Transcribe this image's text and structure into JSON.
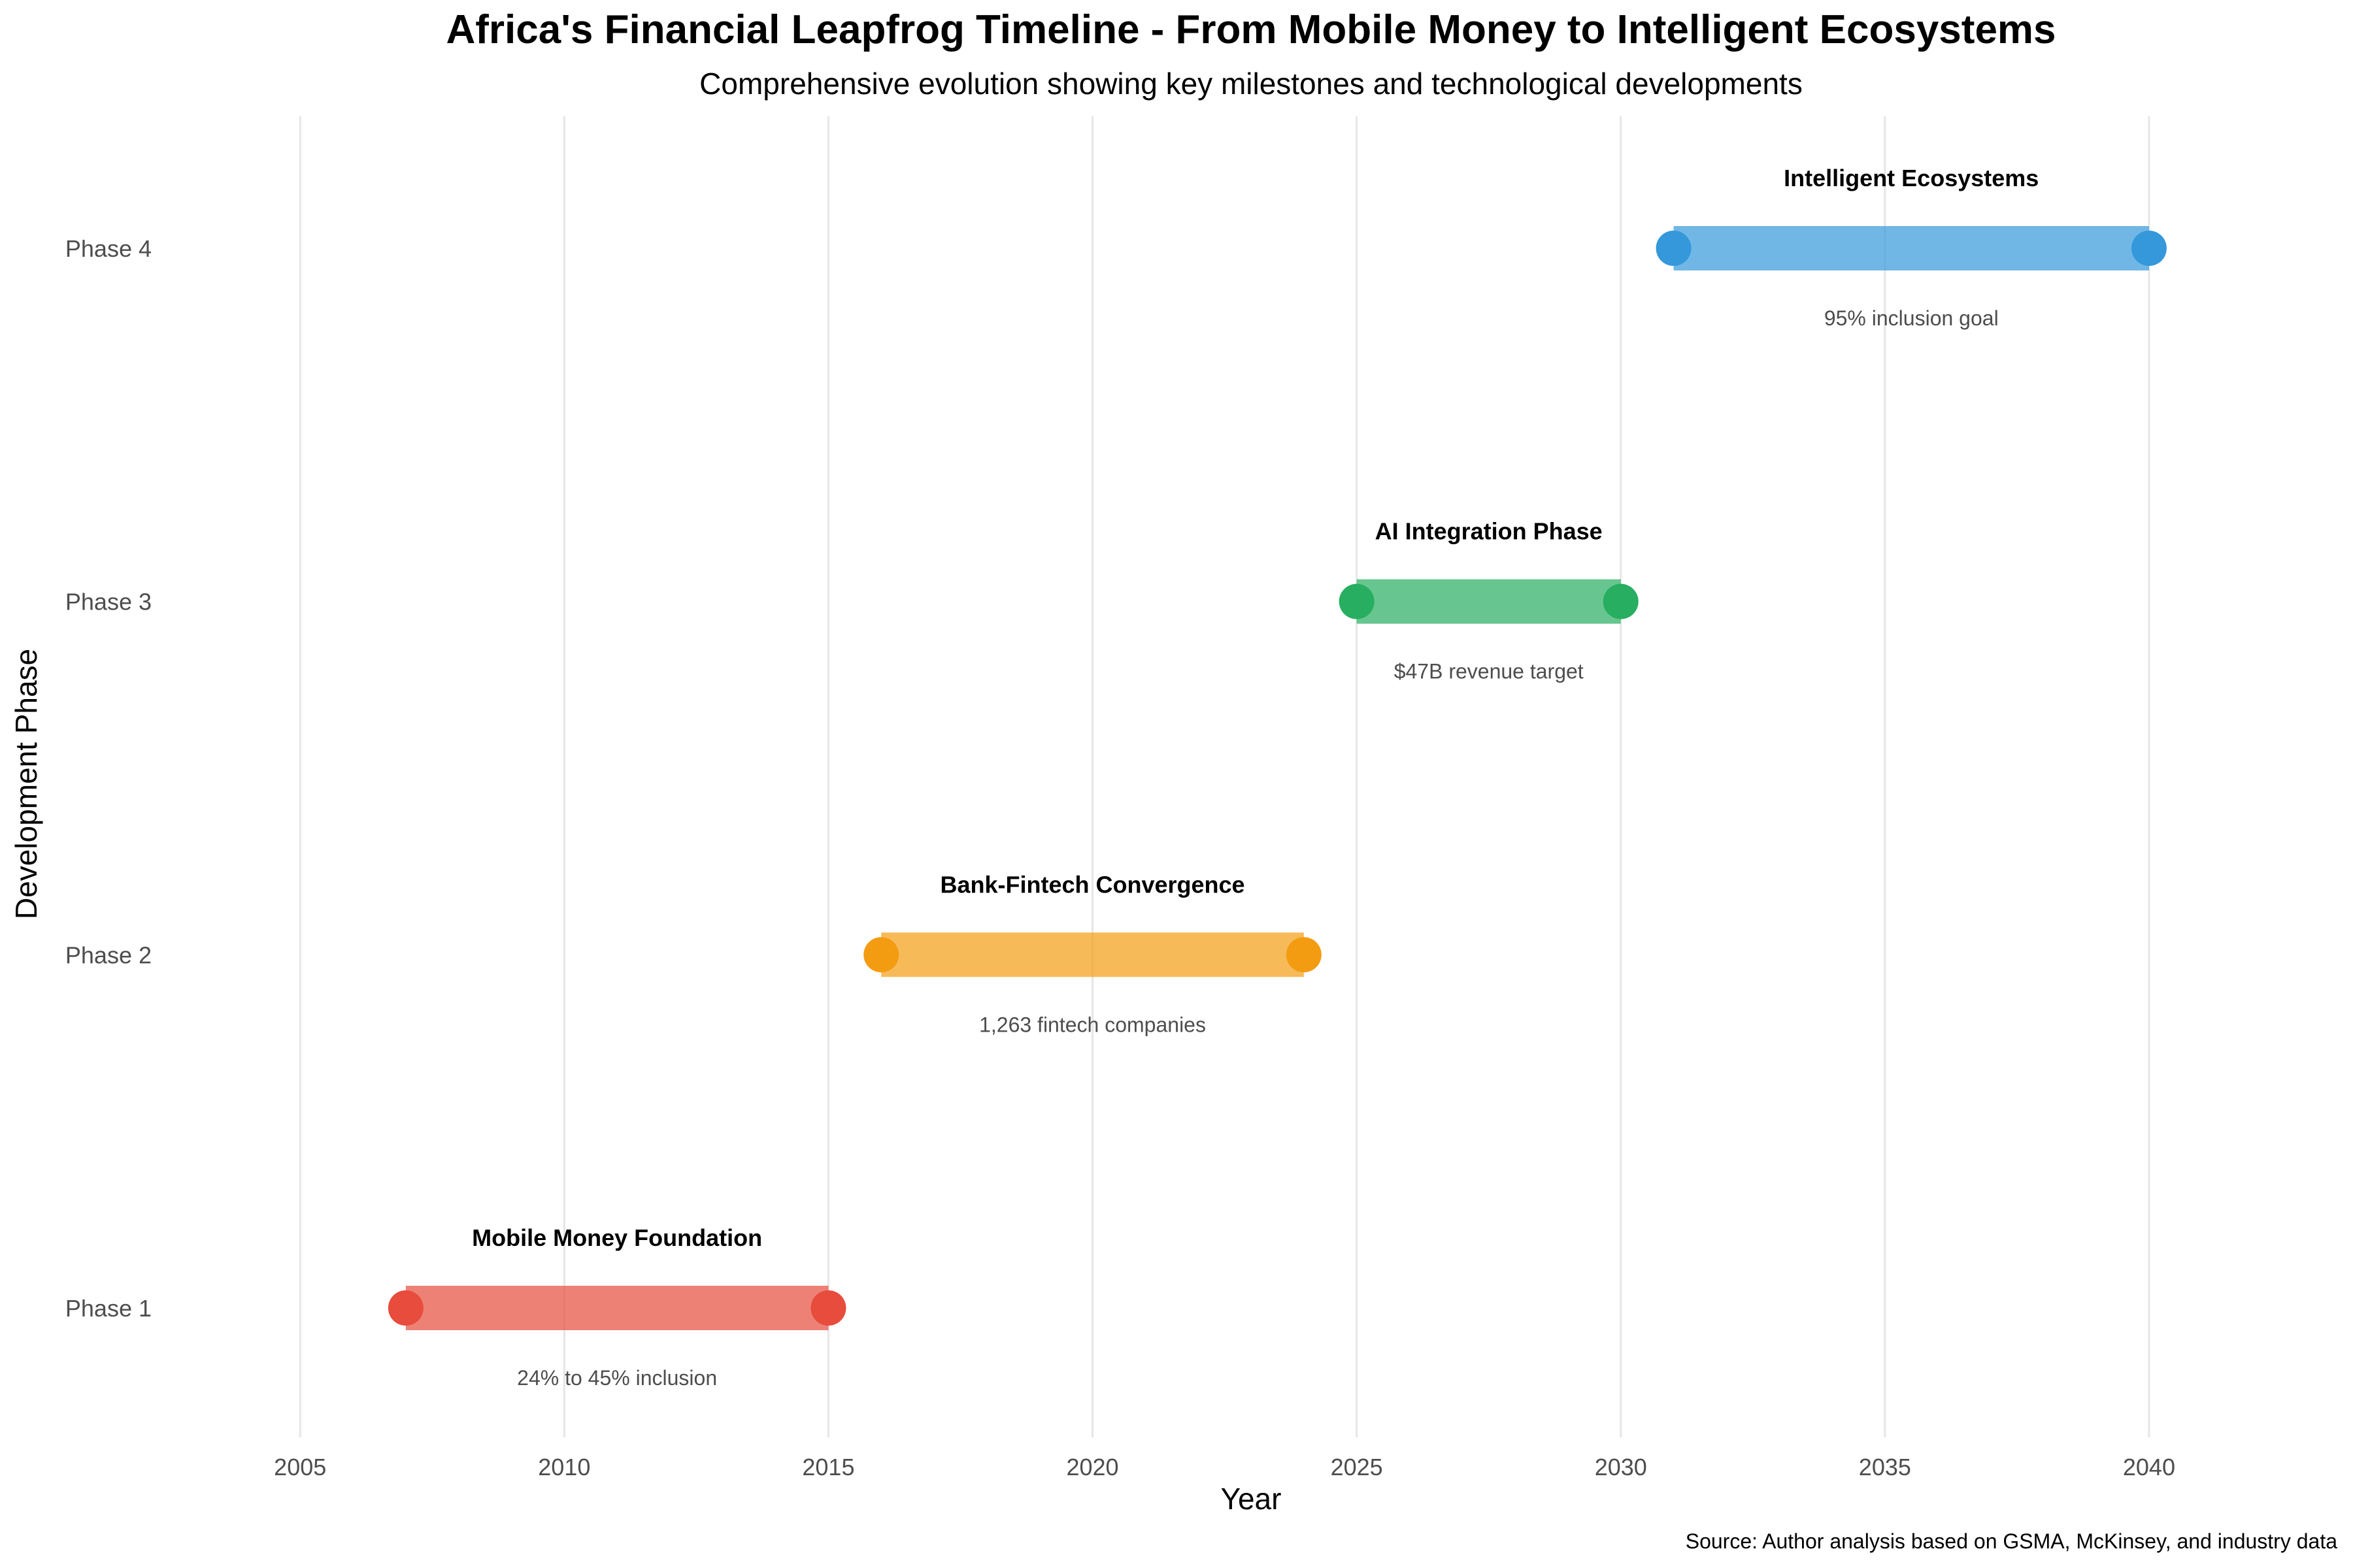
{
  "chart_data": {
    "type": "timeline",
    "title": "Africa's Financial Leapfrog Timeline - From Mobile Money to Intelligent Ecosystems",
    "subtitle": "Comprehensive evolution showing key milestones and technological developments",
    "xlabel": "Year",
    "ylabel": "Development Phase",
    "caption": "Source: Author analysis based on GSMA, McKinsey, and industry data",
    "xlim": [
      2003.5,
      2042.5
    ],
    "x_ticks": [
      2005,
      2010,
      2015,
      2020,
      2025,
      2030,
      2035,
      2040
    ],
    "grid": "vertical major lines",
    "legend": "none",
    "phases": [
      {
        "category": "Phase 1",
        "name": "Mobile Money Foundation",
        "start": 2007,
        "end": 2015,
        "note": "24% to 45% inclusion",
        "color": "#e74c3c"
      },
      {
        "category": "Phase 2",
        "name": "Bank-Fintech Convergence",
        "start": 2016,
        "end": 2024,
        "note": "1,263 fintech companies",
        "color": "#f39c12"
      },
      {
        "category": "Phase 3",
        "name": "AI Integration Phase",
        "start": 2025,
        "end": 2030,
        "note": "$47B revenue target",
        "color": "#27ae60"
      },
      {
        "category": "Phase 4",
        "name": "Intelligent Ecosystems",
        "start": 2031,
        "end": 2040,
        "note": "95% inclusion goal",
        "color": "#3498db"
      }
    ]
  }
}
